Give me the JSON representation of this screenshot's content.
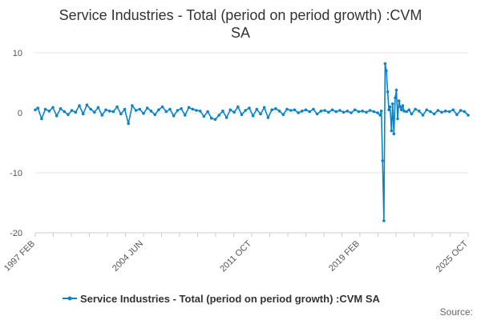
{
  "chart_data": {
    "type": "line",
    "title_line1": "Service Industries - Total (period on period growth) :CVM",
    "title_line2": "SA",
    "xlabel": "",
    "ylabel": "",
    "ylim": [
      -20,
      10
    ],
    "y_ticks": [
      10,
      0,
      -10,
      -20
    ],
    "x_tick_labels": [
      "1997 FEB",
      "2004 JUN",
      "2011 OCT",
      "2019 FEB",
      "2025 OCT"
    ],
    "grid": true,
    "legend_position": "bottom",
    "source_label": "Source:",
    "series_color": "#0b84c6",
    "series": [
      {
        "name": "Service Industries - Total (period on period growth) :CVM SA",
        "x": [
          1997.08,
          1997.25,
          1997.5,
          1997.75,
          1998.0,
          1998.25,
          1998.5,
          1998.75,
          1999.0,
          1999.25,
          1999.5,
          1999.75,
          2000.0,
          2000.25,
          2000.5,
          2000.75,
          2001.0,
          2001.25,
          2001.5,
          2001.75,
          2002.0,
          2002.25,
          2002.5,
          2002.75,
          2003.0,
          2003.25,
          2003.5,
          2003.75,
          2004.0,
          2004.25,
          2004.5,
          2004.75,
          2005.0,
          2005.25,
          2005.5,
          2005.75,
          2006.0,
          2006.25,
          2006.5,
          2006.75,
          2007.0,
          2007.25,
          2007.5,
          2007.75,
          2008.0,
          2008.25,
          2008.5,
          2008.75,
          2009.0,
          2009.25,
          2009.5,
          2009.75,
          2010.0,
          2010.25,
          2010.5,
          2010.75,
          2011.0,
          2011.25,
          2011.5,
          2011.75,
          2012.0,
          2012.25,
          2012.5,
          2012.75,
          2013.0,
          2013.25,
          2013.5,
          2013.75,
          2014.0,
          2014.25,
          2014.5,
          2014.75,
          2015.0,
          2015.25,
          2015.5,
          2015.75,
          2016.0,
          2016.25,
          2016.5,
          2016.75,
          2017.0,
          2017.25,
          2017.5,
          2017.75,
          2018.0,
          2018.25,
          2018.5,
          2018.75,
          2019.0,
          2019.25,
          2019.5,
          2019.75,
          2019.92,
          2020.0,
          2020.08,
          2020.17,
          2020.25,
          2020.33,
          2020.42,
          2020.5,
          2020.58,
          2020.67,
          2020.75,
          2020.83,
          2020.92,
          2021.0,
          2021.08,
          2021.17,
          2021.25,
          2021.33,
          2021.42,
          2021.5,
          2021.67,
          2021.83,
          2022.0,
          2022.25,
          2022.5,
          2022.75,
          2023.0,
          2023.25,
          2023.5,
          2023.75,
          2024.0,
          2024.25,
          2024.5,
          2024.75,
          2025.0,
          2025.25,
          2025.5,
          2025.75
        ],
        "y": [
          0.5,
          0.8,
          -1.0,
          0.6,
          0.3,
          0.9,
          -0.5,
          0.7,
          0.2,
          -0.3,
          0.4,
          0.1,
          1.2,
          -0.2,
          1.3,
          0.6,
          0.1,
          0.9,
          -0.4,
          0.5,
          0.3,
          0.2,
          1.0,
          -0.2,
          0.6,
          -1.8,
          1.2,
          0.4,
          0.6,
          -0.1,
          0.8,
          0.3,
          -0.3,
          0.5,
          1.0,
          0.2,
          0.6,
          -0.5,
          0.4,
          0.7,
          -0.4,
          0.9,
          0.6,
          0.4,
          0.3,
          -0.6,
          0.2,
          -0.9,
          -1.1,
          -0.4,
          0.3,
          -0.8,
          0.5,
          0.1,
          1.0,
          -0.3,
          0.4,
          0.8,
          -0.5,
          0.6,
          -0.2,
          0.9,
          -0.8,
          0.5,
          0.7,
          0.3,
          -0.3,
          0.6,
          0.4,
          0.5,
          0.0,
          0.3,
          0.5,
          0.2,
          0.6,
          -0.2,
          0.3,
          0.4,
          0.1,
          0.5,
          0.2,
          0.4,
          0.1,
          0.3,
          0.0,
          0.5,
          0.2,
          0.3,
          0.1,
          0.4,
          0.2,
          0.0,
          -0.4,
          0.3,
          -8.0,
          -18.0,
          8.2,
          7.0,
          3.5,
          0.5,
          1.0,
          -3.0,
          1.5,
          -3.5,
          2.5,
          3.8,
          -1.0,
          2.0,
          1.0,
          0.5,
          1.2,
          0.3,
          0.2,
          0.5,
          -0.2,
          0.6,
          0.3,
          -0.4,
          0.5,
          0.2,
          -0.2,
          0.4,
          0.1,
          0.3,
          0.2,
          0.5,
          -0.3,
          0.4,
          0.2,
          -0.4
        ]
      }
    ]
  }
}
